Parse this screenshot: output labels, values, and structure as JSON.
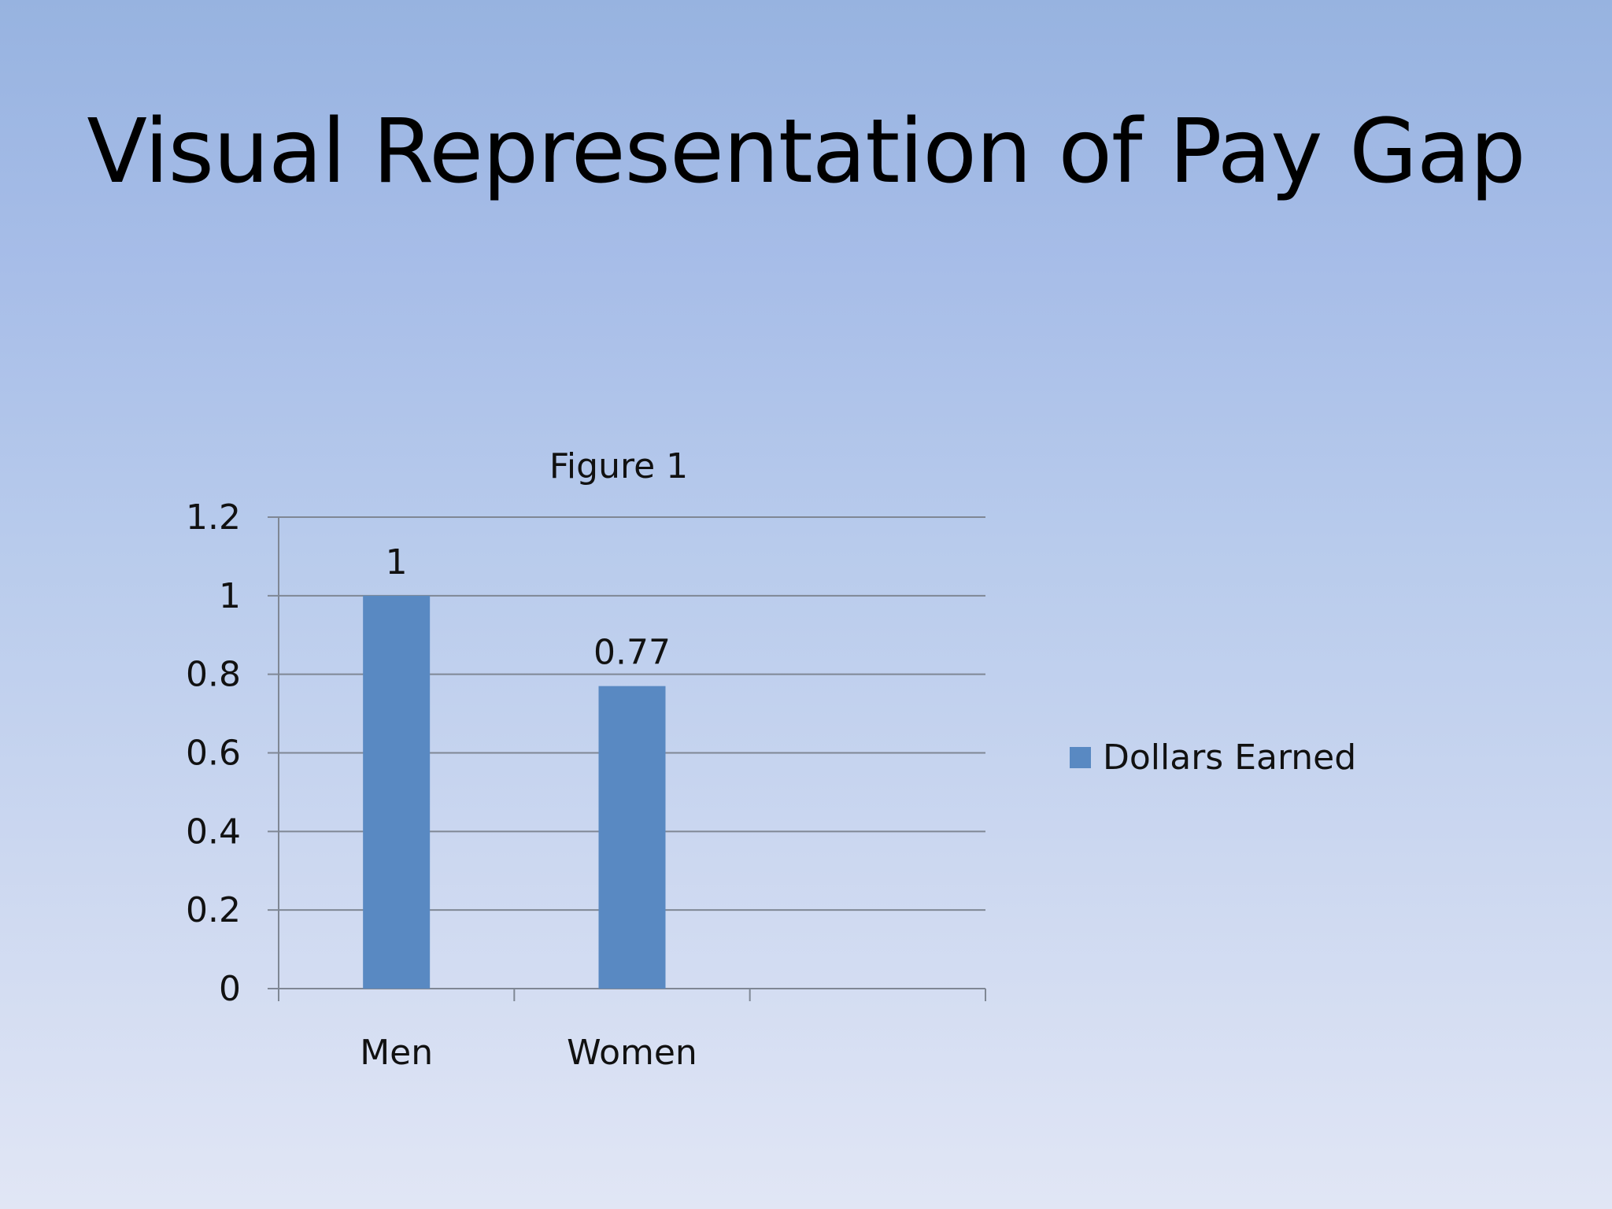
{
  "slide": {
    "title": "Visual Representation of Pay Gap"
  },
  "chart_data": {
    "type": "bar",
    "title": "Figure 1",
    "xlabel": "",
    "ylabel": "",
    "categories": [
      "Men",
      "Women",
      ""
    ],
    "series": [
      {
        "name": "Dollars Earned",
        "values": [
          1,
          0.77,
          null
        ],
        "color": "#5989c2"
      }
    ],
    "ylim": [
      0,
      1.2
    ],
    "yticks": [
      "0",
      "0.2",
      "0.4",
      "0.6",
      "0.8",
      "1",
      "1.2"
    ],
    "data_labels": [
      "1",
      "0.77",
      ""
    ],
    "grid": true,
    "legend_position": "right",
    "colors": {
      "bar": "#5989c2",
      "grid": "#7f8794",
      "axis": "#7f8794"
    }
  }
}
